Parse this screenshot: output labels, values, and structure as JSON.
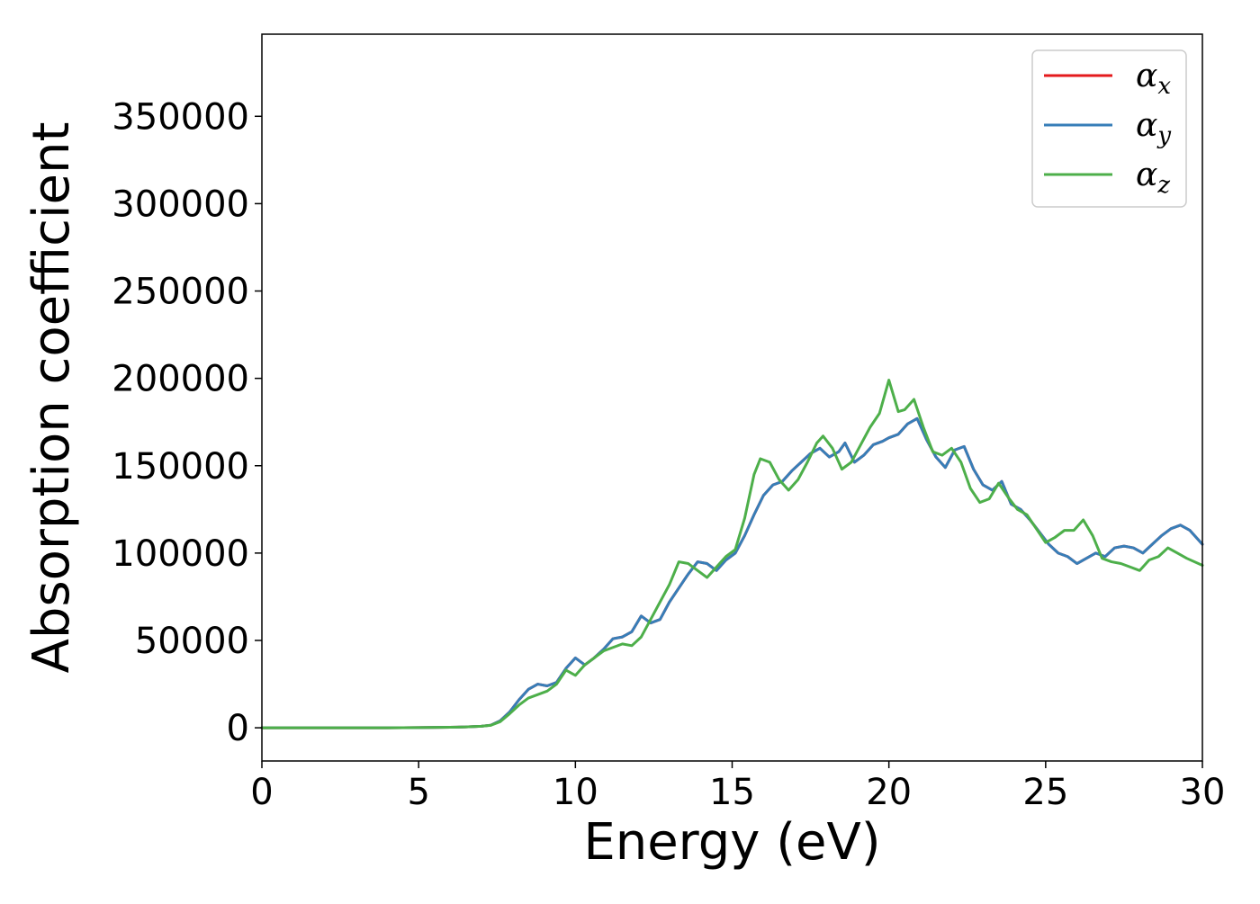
{
  "chart_data": {
    "type": "line",
    "title": "",
    "xlabel": "Energy (eV)",
    "ylabel": "Absorption coefficient",
    "xlim": [
      0,
      30
    ],
    "ylim": [
      -19000,
      397000
    ],
    "xticks": [
      0,
      5,
      10,
      15,
      20,
      25,
      30
    ],
    "yticks": [
      0,
      50000,
      100000,
      150000,
      200000,
      250000,
      300000,
      350000
    ],
    "grid": false,
    "legend_position": "top-right",
    "series": [
      {
        "name": "αx",
        "legend_base": "α",
        "legend_sub": "x",
        "color": "#e41a1c",
        "x": [
          0,
          1,
          2,
          3,
          4,
          5,
          6,
          6.5,
          7,
          7.3,
          7.6,
          7.9,
          8.2,
          8.5,
          8.8,
          9.1,
          9.4,
          9.7,
          10,
          10.3,
          10.6,
          10.9,
          11.2,
          11.5,
          11.8,
          12.1,
          12.4,
          12.7,
          13,
          13.3,
          13.6,
          13.9,
          14.2,
          14.5,
          14.8,
          15.1,
          15.4,
          15.7,
          16,
          16.3,
          16.6,
          16.9,
          17.2,
          17.5,
          17.8,
          18.1,
          18.4,
          18.6,
          18.9,
          19.2,
          19.5,
          19.8,
          20,
          20.3,
          20.6,
          20.9,
          21.2,
          21.5,
          21.8,
          22.1,
          22.4,
          22.7,
          23,
          23.3,
          23.6,
          23.9,
          24.2,
          24.5,
          24.8,
          25.1,
          25.4,
          25.7,
          26,
          26.3,
          26.6,
          26.9,
          27.2,
          27.5,
          27.8,
          28.1,
          28.4,
          28.7,
          29,
          29.3,
          29.6,
          30
        ],
        "values": [
          0,
          0,
          0,
          0,
          0,
          100,
          300,
          500,
          900,
          1500,
          4000,
          9000,
          16000,
          22000,
          25000,
          24000,
          26000,
          34000,
          40000,
          36000,
          40000,
          45000,
          51000,
          52000,
          55000,
          64000,
          60000,
          62000,
          72000,
          80000,
          88000,
          95000,
          94000,
          90000,
          96000,
          100000,
          110000,
          122000,
          133000,
          139000,
          141000,
          147000,
          152000,
          157000,
          160000,
          155000,
          158000,
          163000,
          152000,
          156000,
          162000,
          164000,
          166000,
          168000,
          174000,
          177000,
          165000,
          155000,
          149000,
          159000,
          161000,
          148000,
          139000,
          136000,
          141000,
          128000,
          125000,
          119000,
          112000,
          105000,
          100000,
          98000,
          94000,
          97000,
          100000,
          98000,
          103000,
          104000,
          103000,
          100000,
          105000,
          110000,
          114000,
          116000,
          113000,
          105000
        ]
      },
      {
        "name": "αy",
        "legend_base": "α",
        "legend_sub": "y",
        "color": "#377eb8",
        "x": [
          0,
          1,
          2,
          3,
          4,
          5,
          6,
          6.5,
          7,
          7.3,
          7.6,
          7.9,
          8.2,
          8.5,
          8.8,
          9.1,
          9.4,
          9.7,
          10,
          10.3,
          10.6,
          10.9,
          11.2,
          11.5,
          11.8,
          12.1,
          12.4,
          12.7,
          13,
          13.3,
          13.6,
          13.9,
          14.2,
          14.5,
          14.8,
          15.1,
          15.4,
          15.7,
          16,
          16.3,
          16.6,
          16.9,
          17.2,
          17.5,
          17.8,
          18.1,
          18.4,
          18.6,
          18.9,
          19.2,
          19.5,
          19.8,
          20,
          20.3,
          20.6,
          20.9,
          21.2,
          21.5,
          21.8,
          22.1,
          22.4,
          22.7,
          23,
          23.3,
          23.6,
          23.9,
          24.2,
          24.5,
          24.8,
          25.1,
          25.4,
          25.7,
          26,
          26.3,
          26.6,
          26.9,
          27.2,
          27.5,
          27.8,
          28.1,
          28.4,
          28.7,
          29,
          29.3,
          29.6,
          30
        ],
        "values": [
          0,
          0,
          0,
          0,
          0,
          100,
          300,
          500,
          900,
          1500,
          4000,
          9000,
          16000,
          22000,
          25000,
          24000,
          26000,
          34000,
          40000,
          36000,
          40000,
          45000,
          51000,
          52000,
          55000,
          64000,
          60000,
          62000,
          72000,
          80000,
          88000,
          95000,
          94000,
          90000,
          96000,
          100000,
          110000,
          122000,
          133000,
          139000,
          141000,
          147000,
          152000,
          157000,
          160000,
          155000,
          158000,
          163000,
          152000,
          156000,
          162000,
          164000,
          166000,
          168000,
          174000,
          177000,
          165000,
          155000,
          149000,
          159000,
          161000,
          148000,
          139000,
          136000,
          141000,
          128000,
          125000,
          119000,
          112000,
          105000,
          100000,
          98000,
          94000,
          97000,
          100000,
          98000,
          103000,
          104000,
          103000,
          100000,
          105000,
          110000,
          114000,
          116000,
          113000,
          105000
        ]
      },
      {
        "name": "αz",
        "legend_base": "α",
        "legend_sub": "z",
        "color": "#4daf4a",
        "x": [
          0,
          1,
          2,
          3,
          4,
          5,
          6,
          6.5,
          7,
          7.3,
          7.6,
          7.9,
          8.2,
          8.5,
          8.8,
          9.1,
          9.4,
          9.7,
          10,
          10.3,
          10.6,
          10.9,
          11.2,
          11.5,
          11.8,
          12.1,
          12.4,
          12.7,
          13,
          13.3,
          13.6,
          13.9,
          14.2,
          14.5,
          14.8,
          15.1,
          15.4,
          15.7,
          15.9,
          16.2,
          16.5,
          16.8,
          17.1,
          17.4,
          17.7,
          17.9,
          18.2,
          18.5,
          18.8,
          19.1,
          19.4,
          19.7,
          20,
          20.3,
          20.5,
          20.8,
          21.1,
          21.4,
          21.7,
          22,
          22.3,
          22.6,
          22.9,
          23.2,
          23.5,
          23.8,
          24.1,
          24.4,
          24.7,
          25,
          25.3,
          25.6,
          25.9,
          26.2,
          26.5,
          26.8,
          27.1,
          27.4,
          27.7,
          28,
          28.3,
          28.6,
          28.9,
          29.2,
          29.5,
          30
        ],
        "values": [
          0,
          0,
          0,
          0,
          0,
          100,
          300,
          500,
          900,
          1400,
          3500,
          8000,
          13000,
          17000,
          19000,
          21000,
          25000,
          33000,
          30000,
          36000,
          40000,
          44000,
          46000,
          48000,
          47000,
          52000,
          62000,
          72000,
          82000,
          95000,
          94000,
          90000,
          86000,
          92000,
          98000,
          102000,
          120000,
          145000,
          154000,
          152000,
          142000,
          136000,
          142000,
          152000,
          163000,
          167000,
          160000,
          148000,
          152000,
          162000,
          172000,
          180000,
          199000,
          181000,
          182000,
          188000,
          172000,
          158000,
          156000,
          160000,
          152000,
          137000,
          129000,
          131000,
          140000,
          132000,
          125000,
          122000,
          114000,
          106000,
          109000,
          113000,
          113000,
          119000,
          110000,
          97000,
          95000,
          94000,
          92000,
          90000,
          96000,
          98000,
          103000,
          100000,
          97000,
          93000
        ]
      }
    ]
  }
}
